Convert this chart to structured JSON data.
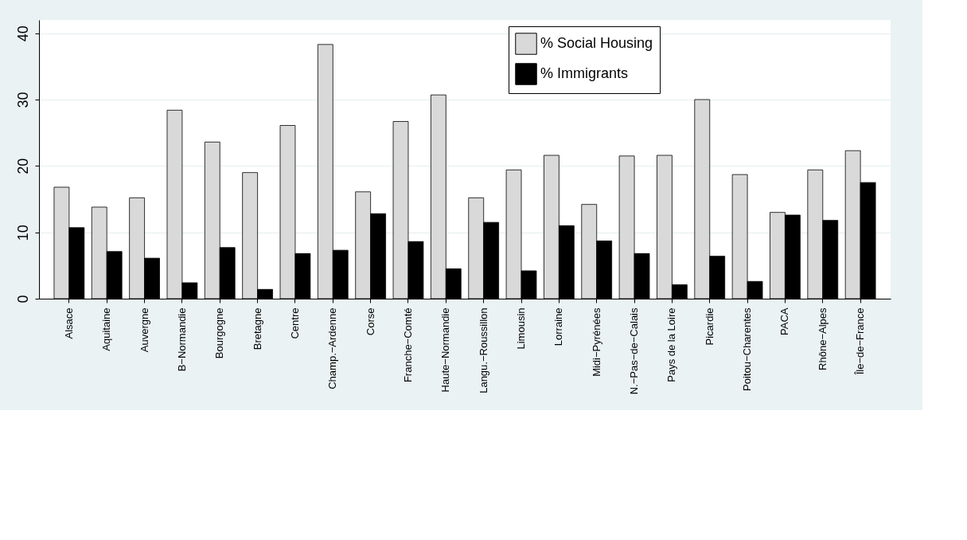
{
  "chart_data": {
    "type": "bar",
    "categories": [
      "Alsace",
      "Aquitaine",
      "Auvergne",
      "B−Normandie",
      "Bourgogne",
      "Bretagne",
      "Centre",
      "Champ.−Ardenne",
      "Corse",
      "Franche−Comté",
      "Haute−Normandie",
      "Langu.−Roussillon",
      "Limousin",
      "Lorraine",
      "Midi−Pyrénées",
      "N.−Pas−de−Calais",
      "Pays de la Loire",
      "Picardie",
      "Poitou−Charentes",
      "PACA",
      "Rhône−Alpes",
      "Île−de−France"
    ],
    "series": [
      {
        "name": "% Social Housing",
        "color": "#d9d9d9",
        "values": [
          16.8,
          13.8,
          15.2,
          28.4,
          23.6,
          19.0,
          26.1,
          38.3,
          16.1,
          26.7,
          30.7,
          15.2,
          19.4,
          21.6,
          14.2,
          21.5,
          21.6,
          30.0,
          18.7,
          13.0,
          19.4,
          22.3
        ]
      },
      {
        "name": "% Immigrants",
        "color": "#000000",
        "values": [
          10.7,
          7.1,
          6.1,
          2.4,
          7.7,
          1.4,
          6.8,
          7.3,
          12.8,
          8.6,
          4.5,
          11.5,
          4.2,
          11.0,
          8.7,
          6.8,
          2.1,
          6.4,
          2.6,
          12.6,
          11.8,
          17.5
        ]
      }
    ],
    "ylim": [
      0,
      42
    ],
    "yticks": [
      0,
      10,
      20,
      30,
      40
    ],
    "grid": "y",
    "legend": "top"
  }
}
